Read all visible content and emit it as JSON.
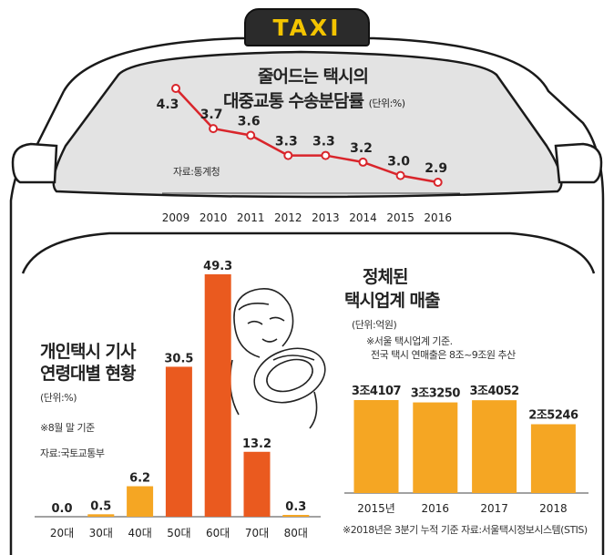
{
  "taxi_sign": "TAXI",
  "chart_data": [
    {
      "type": "line",
      "title_lines": [
        "줄어드는 택시의",
        "대중교통 수송분담률"
      ],
      "unit": "(단위:%)",
      "source": "자료:통계청",
      "x": [
        "2009",
        "2010",
        "2011",
        "2012",
        "2013",
        "2014",
        "2015",
        "2016"
      ],
      "values": [
        4.3,
        3.7,
        3.6,
        3.3,
        3.3,
        3.2,
        3.0,
        2.9
      ],
      "labels": [
        "4.3",
        "3.7",
        "3.6",
        "3.3",
        "3.3",
        "3.2",
        "3.0",
        "2.9"
      ],
      "color": "#d9252b"
    },
    {
      "type": "bar",
      "title_lines": [
        "개인택시 기사",
        "연령대별 현황"
      ],
      "unit": "(단위:%)",
      "note": "※8월 말 기준",
      "source": "자료:국토교통부",
      "categories": [
        "20대",
        "30대",
        "40대",
        "50대",
        "60대",
        "70대",
        "80대"
      ],
      "values": [
        0.0,
        0.5,
        6.2,
        30.5,
        49.3,
        13.2,
        0.3
      ],
      "labels": [
        "0.0",
        "0.5",
        "6.2",
        "30.5",
        "49.3",
        "13.2",
        "0.3"
      ],
      "colors": [
        "#f5a623",
        "#f5a623",
        "#f5a623",
        "#ea5a1f",
        "#ea5a1f",
        "#ea5a1f",
        "#f5a623"
      ]
    },
    {
      "type": "bar",
      "title_lines": [
        "정체된",
        "택시업계 매출"
      ],
      "unit": "(단위:억원)",
      "notes": [
        "※서울 택시업계 기준.",
        "전국 택시 연매출은 8조~9조원 추산"
      ],
      "categories": [
        "2015년",
        "2016",
        "2017",
        "2018"
      ],
      "values": [
        34107,
        33250,
        34052,
        25246
      ],
      "labels": [
        "3조4107",
        "3조3250",
        "3조4052",
        "2조5246"
      ],
      "footnote": "※2018년은 3분기 누적 기준  자료:서울택시정보시스템(STIS)",
      "color": "#f5a623"
    }
  ]
}
